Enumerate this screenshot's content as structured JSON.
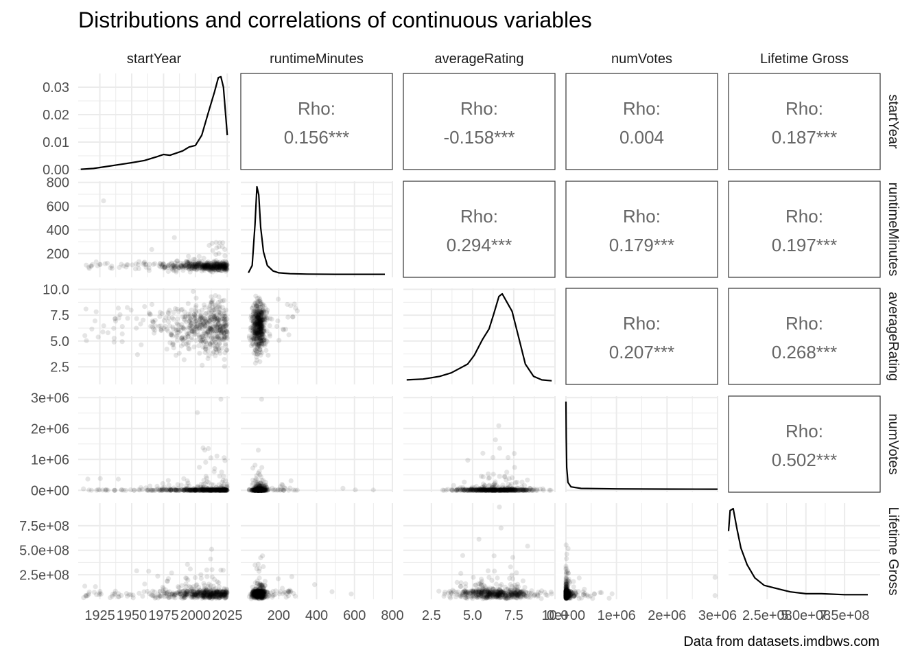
{
  "title": "Distributions and correlations of continuous variables",
  "caption": "Data from datasets.imdbws.com",
  "variables": [
    "startYear",
    "runtimeMinutes",
    "averageRating",
    "numVotes",
    "Lifetime Gross"
  ],
  "colors": {
    "panel_border": "#333333",
    "grid": "#ebebeb",
    "line": "#000000",
    "text": "#4d4d4d",
    "rho_text": "#666666"
  },
  "chart_data": {
    "type": "scatter-matrix",
    "title": "Distributions and correlations of continuous variables",
    "caption": "Data from datasets.imdbws.com",
    "variables": [
      "startYear",
      "runtimeMinutes",
      "averageRating",
      "numVotes",
      "Lifetime Gross"
    ],
    "x_ticks": [
      {
        "values": [
          1925,
          1950,
          1975,
          2000,
          2025
        ],
        "labels": [
          "1925",
          "1950",
          "1975",
          "2000",
          "2025"
        ]
      },
      {
        "values": [
          200,
          400,
          600,
          800
        ],
        "labels": [
          "200",
          "400",
          "600",
          "800"
        ]
      },
      {
        "values": [
          2.5,
          5.0,
          7.5,
          10.0
        ],
        "labels": [
          "2.5",
          "5.0",
          "7.5",
          "10.0"
        ]
      },
      {
        "values": [
          0,
          1000000,
          2000000,
          3000000
        ],
        "labels": [
          "0e+00",
          "1e+06",
          "2e+06",
          "3e+06"
        ]
      },
      {
        "values": [
          250000000,
          500000000,
          750000000
        ],
        "labels": [
          "2.5e+08",
          "5.0e+08",
          "7.5e+08"
        ]
      }
    ],
    "y_ticks": [
      {
        "values": [
          0,
          0.01,
          0.02,
          0.03
        ],
        "labels": [
          "0.00",
          "0.01",
          "0.02",
          "0.03"
        ]
      },
      {
        "values": [
          200,
          400,
          600,
          800
        ],
        "labels": [
          "200",
          "400",
          "600",
          "800"
        ]
      },
      {
        "values": [
          2.5,
          5.0,
          7.5,
          10.0
        ],
        "labels": [
          "2.5",
          "5.0",
          "7.5",
          "10.0"
        ]
      },
      {
        "values": [
          0,
          1000000,
          2000000,
          3000000
        ],
        "labels": [
          "0e+00",
          "1e+06",
          "2e+06",
          "3e+06"
        ]
      },
      {
        "values": [
          250000000,
          500000000,
          750000000
        ],
        "labels": [
          "2.5e+08",
          "5.0e+08",
          "7.5e+08"
        ]
      }
    ],
    "x_ranges": [
      [
        1908,
        2027
      ],
      [
        0,
        800
      ],
      [
        0.8,
        10.0
      ],
      [
        0,
        3000000
      ],
      [
        0,
        980000000
      ]
    ],
    "y_ranges": [
      [
        0,
        0.035
      ],
      [
        0,
        810
      ],
      [
        0.8,
        10.1
      ],
      [
        -60000,
        3050000
      ],
      [
        0,
        980000000
      ]
    ],
    "correlations": [
      {
        "row": 0,
        "col": 1,
        "label": "Rho:",
        "value": "0.156***"
      },
      {
        "row": 0,
        "col": 2,
        "label": "Rho:",
        "value": "-0.158***"
      },
      {
        "row": 0,
        "col": 3,
        "label": "Rho:",
        "value": "0.004"
      },
      {
        "row": 0,
        "col": 4,
        "label": "Rho:",
        "value": "0.187***"
      },
      {
        "row": 1,
        "col": 2,
        "label": "Rho:",
        "value": "0.294***"
      },
      {
        "row": 1,
        "col": 3,
        "label": "Rho:",
        "value": "0.179***"
      },
      {
        "row": 1,
        "col": 4,
        "label": "Rho:",
        "value": "0.197***"
      },
      {
        "row": 2,
        "col": 3,
        "label": "Rho:",
        "value": "0.207***"
      },
      {
        "row": 2,
        "col": 4,
        "label": "Rho:",
        "value": "0.268***"
      },
      {
        "row": 3,
        "col": 4,
        "label": "Rho:",
        "value": "0.502***"
      }
    ],
    "densities": [
      {
        "variable": "startYear",
        "x": [
          1910,
          1920,
          1930,
          1940,
          1950,
          1960,
          1970,
          1975,
          1980,
          1990,
          1995,
          2000,
          2005,
          2010,
          2015,
          2018,
          2020,
          2022,
          2025
        ],
        "y": [
          0.0001,
          0.0004,
          0.0011,
          0.0018,
          0.0025,
          0.0033,
          0.0047,
          0.0055,
          0.0052,
          0.0068,
          0.0082,
          0.0088,
          0.0125,
          0.0205,
          0.0283,
          0.0335,
          0.0338,
          0.03,
          0.0125
        ]
      },
      {
        "variable": "runtimeMinutes",
        "x": [
          40,
          60,
          75,
          85,
          95,
          105,
          120,
          140,
          170,
          200,
          260,
          350,
          500,
          650,
          760
        ],
        "y": [
          0.02,
          0.1,
          0.55,
          0.97,
          0.88,
          0.52,
          0.25,
          0.1,
          0.04,
          0.02,
          0.01,
          0.005,
          0.003,
          0.003,
          0.003
        ]
      },
      {
        "variable": "averageRating",
        "x": [
          1.0,
          2.0,
          3.0,
          3.7,
          4.2,
          4.7,
          5.1,
          5.6,
          6.0,
          6.3,
          6.6,
          6.8,
          7.1,
          7.4,
          7.8,
          8.2,
          8.7,
          9.2,
          9.8
        ],
        "y": [
          0.02,
          0.03,
          0.06,
          0.1,
          0.15,
          0.2,
          0.3,
          0.48,
          0.6,
          0.78,
          0.97,
          1.0,
          0.9,
          0.8,
          0.5,
          0.2,
          0.06,
          0.02,
          0.01
        ]
      },
      {
        "variable": "numVotes",
        "x": [
          0,
          5000,
          15000,
          40000,
          100000,
          300000,
          1000000,
          2000000,
          3000000
        ],
        "y": [
          1.0,
          0.6,
          0.25,
          0.08,
          0.03,
          0.012,
          0.006,
          0.004,
          0.003
        ]
      },
      {
        "variable": "Lifetime Gross",
        "x": [
          0,
          10000000,
          30000000,
          55000000,
          80000000,
          120000000,
          170000000,
          230000000,
          300000000,
          400000000,
          500000000,
          600000000,
          750000000,
          900000000
        ],
        "y": [
          0.7,
          0.92,
          0.94,
          0.72,
          0.52,
          0.34,
          0.2,
          0.12,
          0.09,
          0.05,
          0.03,
          0.03,
          0.02,
          0.02
        ]
      }
    ],
    "scatter_clouds": [
      {
        "row": 1,
        "col": 0,
        "x": "startYear",
        "y": "runtimeMinutes"
      },
      {
        "row": 2,
        "col": 0,
        "x": "startYear",
        "y": "averageRating"
      },
      {
        "row": 2,
        "col": 1,
        "x": "runtimeMinutes",
        "y": "averageRating"
      },
      {
        "row": 3,
        "col": 0,
        "x": "startYear",
        "y": "numVotes"
      },
      {
        "row": 3,
        "col": 1,
        "x": "runtimeMinutes",
        "y": "numVotes"
      },
      {
        "row": 3,
        "col": 2,
        "x": "averageRating",
        "y": "numVotes"
      },
      {
        "row": 4,
        "col": 0,
        "x": "startYear",
        "y": "Lifetime Gross"
      },
      {
        "row": 4,
        "col": 1,
        "x": "runtimeMinutes",
        "y": "Lifetime Gross"
      },
      {
        "row": 4,
        "col": 2,
        "x": "averageRating",
        "y": "Lifetime Gross"
      },
      {
        "row": 4,
        "col": 3,
        "x": "numVotes",
        "y": "Lifetime Gross"
      }
    ],
    "grid": true,
    "legend": "none"
  }
}
